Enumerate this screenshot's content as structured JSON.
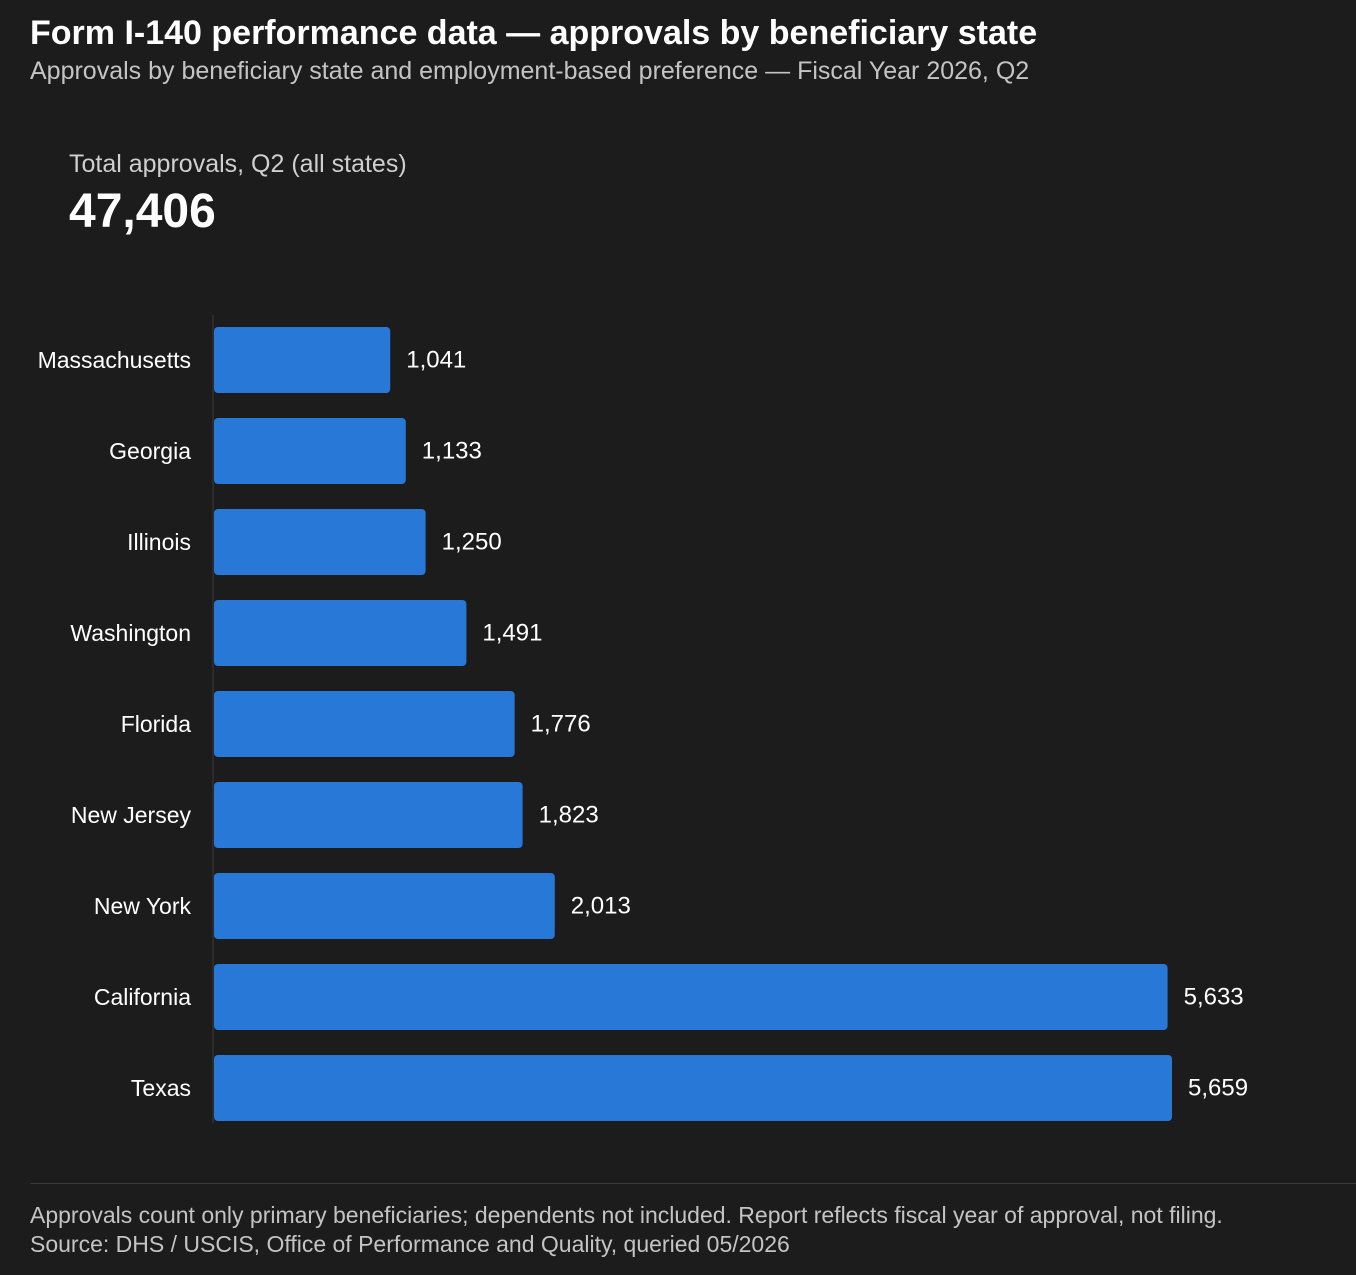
{
  "header": {
    "title": "Form I-140 performance data — approvals by beneficiary state",
    "subtitle": "Approvals by beneficiary state and employment-based preference — Fiscal Year 2026, Q2"
  },
  "kpi": {
    "label": "Total approvals, Q2 (all states)",
    "value": "47,406"
  },
  "chart_data": {
    "type": "bar",
    "orientation": "horizontal",
    "categories": [
      "Massachusetts",
      "Georgia",
      "Illinois",
      "Washington",
      "Florida",
      "New Jersey",
      "New York",
      "California",
      "Texas"
    ],
    "values": [
      1041,
      1133,
      1250,
      1491,
      1776,
      1823,
      2013,
      5633,
      5659
    ],
    "value_labels": [
      "1,041",
      "1,133",
      "1,250",
      "1,491",
      "1,776",
      "1,823",
      "2,013",
      "5,633",
      "5,659"
    ],
    "bar_color": "#2878d8",
    "grid": false,
    "legend": "none"
  },
  "footer": {
    "note": "Approvals count only primary beneficiaries; dependents not included. Report reflects fiscal year of approval, not filing.",
    "source": "Source: DHS / USCIS, Office of Performance and Quality, queried 05/2026"
  }
}
